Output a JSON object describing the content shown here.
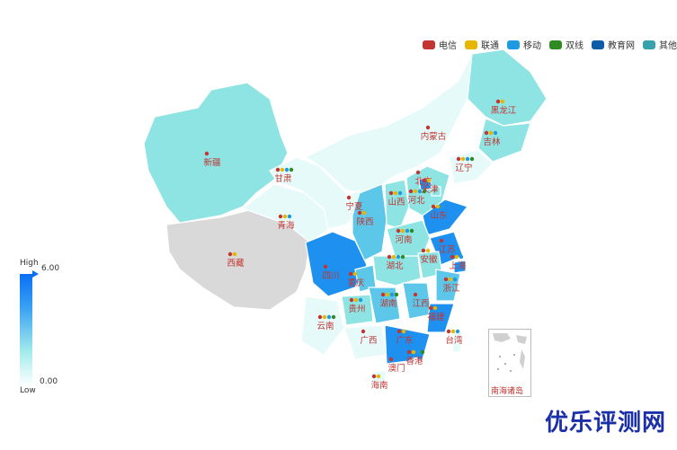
{
  "legend": [
    {
      "label": "电信",
      "color": "#c23531"
    },
    {
      "label": "联通",
      "color": "#e6b600"
    },
    {
      "label": "移动",
      "color": "#1f9ae0"
    },
    {
      "label": "双线",
      "color": "#2e8b22"
    },
    {
      "label": "教育网",
      "color": "#0d5ca8"
    },
    {
      "label": "其他",
      "color": "#36a2ad"
    }
  ],
  "visual_map": {
    "high_label": "High",
    "low_label": "Low",
    "max_value": "6.00",
    "min_value": "0.00"
  },
  "provinces": [
    {
      "name": "新疆",
      "level": 0.45
    },
    {
      "name": "西藏",
      "level": null
    },
    {
      "name": "青海",
      "level": 0.15
    },
    {
      "name": "甘肃",
      "level": 0.15
    },
    {
      "name": "内蒙古",
      "level": 0.15
    },
    {
      "name": "黑龙江",
      "level": 0.45
    },
    {
      "name": "吉林",
      "level": 0.45
    },
    {
      "name": "辽宁",
      "level": 0.15
    },
    {
      "name": "宁夏",
      "level": 0.15
    },
    {
      "name": "陕西",
      "level": 0.85
    },
    {
      "name": "山西",
      "level": 0.45
    },
    {
      "name": "河北",
      "level": 0.45
    },
    {
      "name": "北京",
      "level": 1.0
    },
    {
      "name": "天津",
      "level": 0.45
    },
    {
      "name": "山东",
      "level": 1.0
    },
    {
      "name": "河南",
      "level": 0.45
    },
    {
      "name": "江苏",
      "level": 1.0
    },
    {
      "name": "安徽",
      "level": 0.45
    },
    {
      "name": "上海",
      "level": 1.0
    },
    {
      "name": "湖北",
      "level": 0.45
    },
    {
      "name": "四川",
      "level": 1.0
    },
    {
      "name": "重庆",
      "level": 0.85
    },
    {
      "name": "浙江",
      "level": 0.85
    },
    {
      "name": "湖南",
      "level": 0.85
    },
    {
      "name": "江西",
      "level": 0.85
    },
    {
      "name": "福建",
      "level": 1.0
    },
    {
      "name": "贵州",
      "level": 0.45
    },
    {
      "name": "云南",
      "level": 0.15
    },
    {
      "name": "广西",
      "level": 0.15
    },
    {
      "name": "广东",
      "level": 1.0
    },
    {
      "name": "台湾",
      "level": 0.15
    },
    {
      "name": "香港",
      "level": 0.15
    },
    {
      "name": "澳门",
      "level": 0.15
    },
    {
      "name": "海南",
      "level": 0.15
    }
  ],
  "inset_label": "南海诸岛",
  "watermark": "优乐评测网",
  "colors": {
    "no_data": "#d9d9d9",
    "low": "#e6fafa",
    "mid": "#8ee3e3",
    "high": "#5cc7e8",
    "max": "#1e90f0"
  }
}
